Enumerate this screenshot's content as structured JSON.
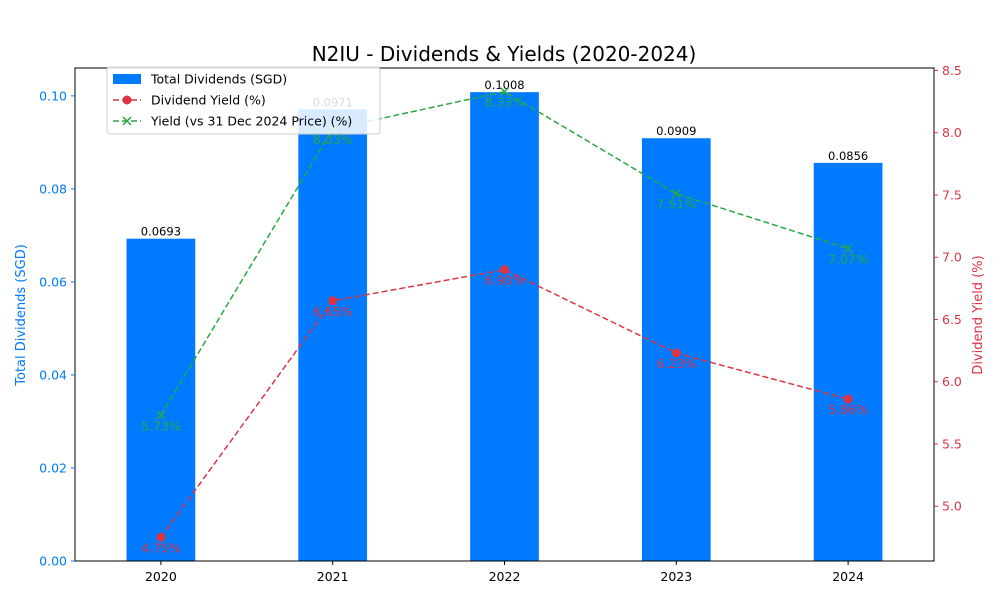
{
  "chart_data": {
    "type": "bar",
    "title": "N2IU - Dividends & Yields (2020-2024)",
    "categories": [
      "2020",
      "2021",
      "2022",
      "2023",
      "2024"
    ],
    "series": [
      {
        "name": "Total Dividends (SGD)",
        "type": "bar",
        "axis": "left",
        "values": [
          0.0693,
          0.0971,
          0.1008,
          0.0909,
          0.0856
        ],
        "labels": [
          "0.0693",
          "0.0971",
          "0.1008",
          "0.0909",
          "0.0856"
        ],
        "color": "#007bff"
      },
      {
        "name": "Dividend Yield (%)",
        "type": "line",
        "axis": "right",
        "values": [
          4.75,
          6.65,
          6.9,
          6.23,
          5.86
        ],
        "labels": [
          "4.75%",
          "6.65%",
          "6.90%",
          "6.23%",
          "5.86%"
        ],
        "color": "#dc3545"
      },
      {
        "name": "Yield (vs 31 Dec 2024 Price) (%)",
        "type": "line",
        "axis": "right",
        "values": [
          5.73,
          8.03,
          8.33,
          7.51,
          7.07
        ],
        "labels": [
          "5.73%",
          "8.03%",
          "8.33%",
          "7.51%",
          "7.07%"
        ],
        "color": "#28a745"
      }
    ],
    "ylabel": "Total Dividends (SGD)",
    "ylabel_right": "Dividend Yield (%)",
    "ylim": [
      0,
      0.106
    ],
    "ylim_right": [
      4.56,
      8.52
    ],
    "yticks": [
      "0.00",
      "0.02",
      "0.04",
      "0.06",
      "0.08",
      "0.10"
    ],
    "yticks_right": [
      "5.0",
      "5.5",
      "6.0",
      "6.5",
      "7.0",
      "7.5",
      "8.0",
      "8.5"
    ],
    "legend_position": "top-left",
    "grid": false
  }
}
